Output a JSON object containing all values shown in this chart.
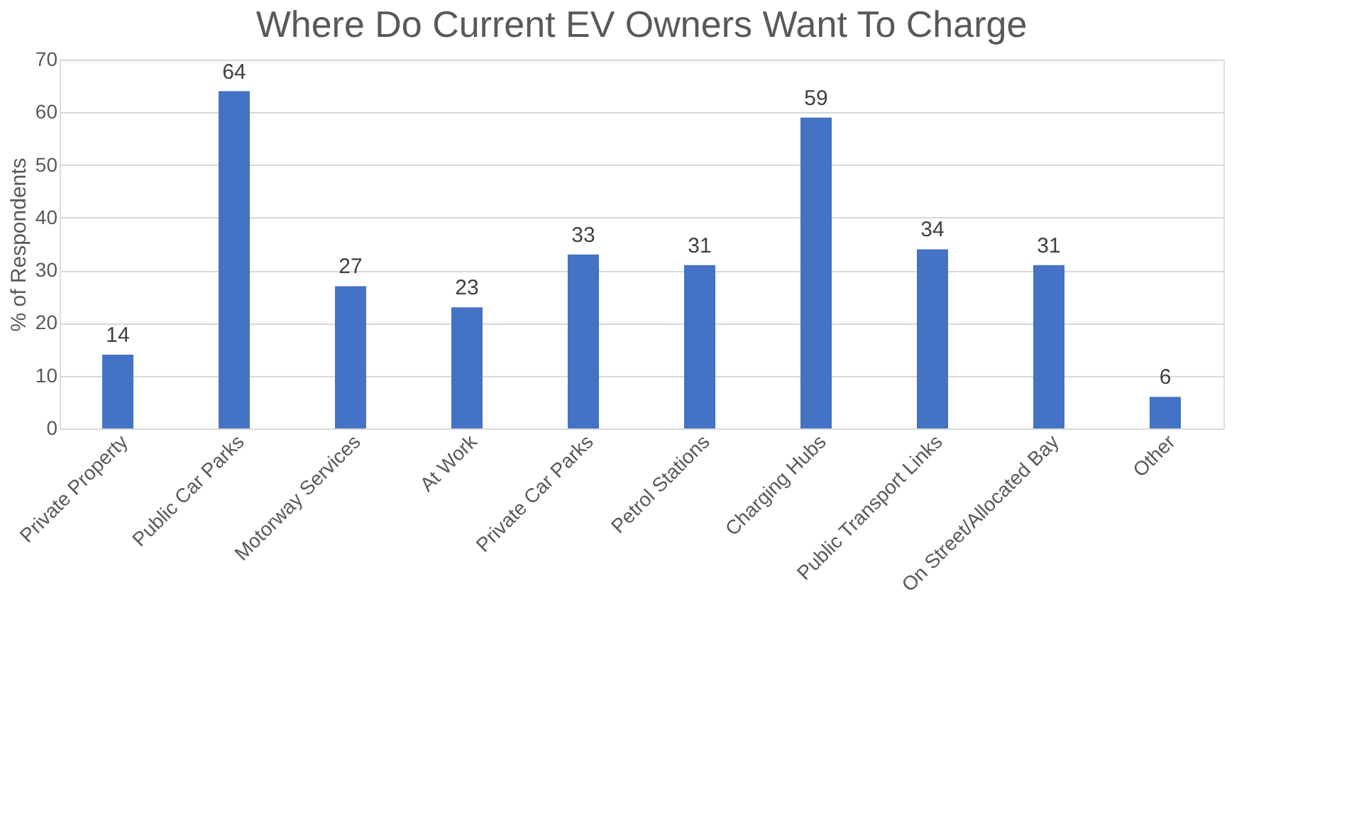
{
  "chart_data": {
    "type": "bar",
    "title": "Where Do Current EV Owners Want To Charge",
    "ylabel": "% of Respondents",
    "categories": [
      "Private Property",
      "Public Car Parks",
      "Motorway Services",
      "At Work",
      "Private Car Parks",
      "Petrol Stations",
      "Charging Hubs",
      "Public Transport Links",
      "On Street/Allocated Bay",
      "Other"
    ],
    "values": [
      14,
      64,
      27,
      23,
      33,
      31,
      59,
      34,
      31,
      6
    ],
    "color": "#4472c4",
    "ylim": [
      0,
      70
    ],
    "yticks": [
      0,
      10,
      20,
      30,
      40,
      50,
      60,
      70
    ],
    "grid": "y",
    "data_labels": true
  }
}
